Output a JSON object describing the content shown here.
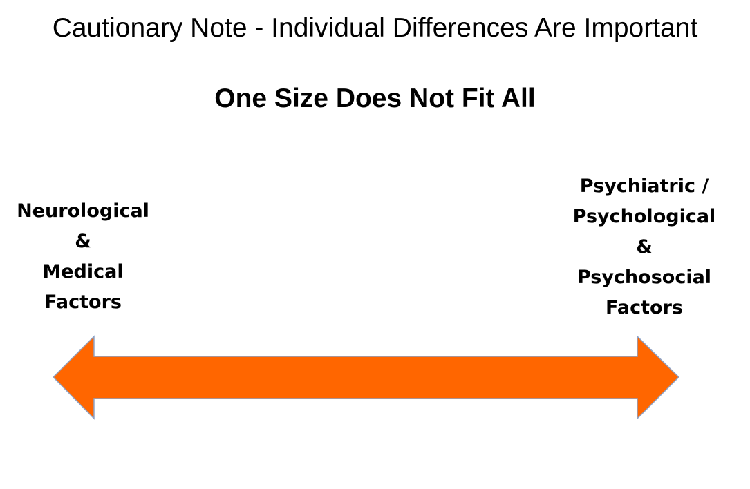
{
  "slide": {
    "title": "Cautionary Note - Individual Differences Are Important",
    "subtitle": "One Size Does Not Fit All"
  },
  "left_pole": {
    "lines": [
      "Neurological",
      "&",
      "Medical",
      "Factors"
    ]
  },
  "right_pole": {
    "lines": [
      "Psychiatric /",
      "Psychological",
      "&",
      "Psychosocial",
      "Factors"
    ]
  },
  "colors": {
    "arrow_fill": "#FF6600",
    "arrow_outline": "#8EA3C7",
    "text": "#000000",
    "background": "#FFFFFF"
  }
}
